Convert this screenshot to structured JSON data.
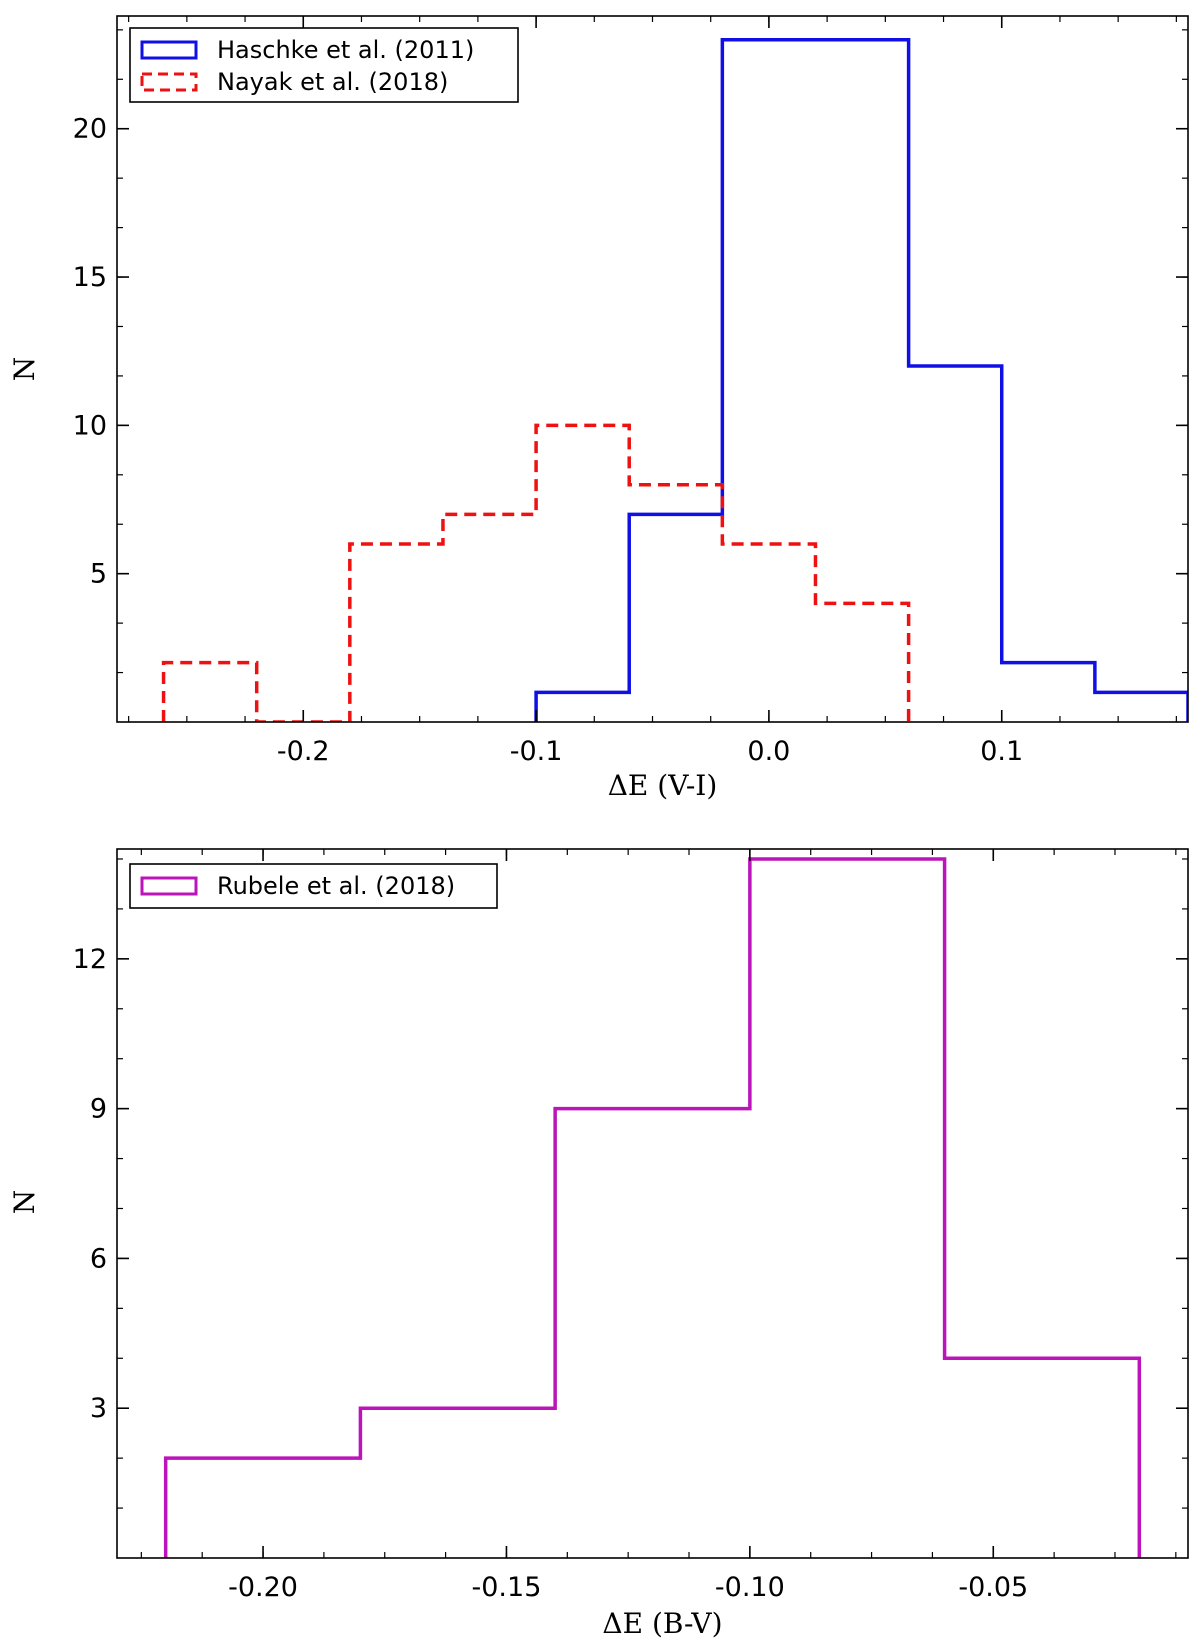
{
  "chart_data": [
    {
      "type": "histogram",
      "xlabel": "ΔE (V-I)",
      "ylabel": "N",
      "xlim": [
        -0.28,
        0.18
      ],
      "ylim": [
        0,
        23.8
      ],
      "xticks": [
        {
          "value": -0.2,
          "label": "-0.2"
        },
        {
          "value": -0.1,
          "label": "-0.1"
        },
        {
          "value": 0.0,
          "label": "0.0"
        },
        {
          "value": 0.1,
          "label": "0.1"
        }
      ],
      "yticks": [
        {
          "value": 5,
          "label": "5"
        },
        {
          "value": 10,
          "label": "10"
        },
        {
          "value": 15,
          "label": "15"
        },
        {
          "value": 20,
          "label": "20"
        }
      ],
      "legend_position": "top-left",
      "series": [
        {
          "name": "Haschke et al. (2011)",
          "color": "#1010e6",
          "style": "solid",
          "bin_edges": [
            -0.1,
            -0.06,
            -0.02,
            0.06,
            0.1,
            0.14,
            0.18
          ],
          "counts": [
            1,
            7,
            23,
            12,
            2,
            1
          ]
        },
        {
          "name": "Nayak et al. (2018)",
          "color": "#ee1111",
          "style": "dashed",
          "bin_edges": [
            -0.26,
            -0.22,
            -0.18,
            -0.14,
            -0.1,
            -0.06,
            -0.02,
            0.02,
            0.06
          ],
          "counts": [
            2,
            0,
            6,
            7,
            10,
            8,
            6,
            4
          ]
        }
      ]
    },
    {
      "type": "histogram",
      "xlabel": "ΔE (B-V)",
      "ylabel": "N",
      "xlim": [
        -0.23,
        -0.01
      ],
      "ylim": [
        0,
        14.2
      ],
      "xticks": [
        {
          "value": -0.2,
          "label": "-0.20"
        },
        {
          "value": -0.15,
          "label": "-0.15"
        },
        {
          "value": -0.1,
          "label": "-0.10"
        },
        {
          "value": -0.05,
          "label": "-0.05"
        }
      ],
      "yticks": [
        {
          "value": 3,
          "label": "3"
        },
        {
          "value": 6,
          "label": "6"
        },
        {
          "value": 9,
          "label": "9"
        },
        {
          "value": 12,
          "label": "12"
        }
      ],
      "legend_position": "top-left",
      "series": [
        {
          "name": "Rubele et al. (2018)",
          "color": "#bb14bb",
          "style": "solid",
          "bin_edges": [
            -0.22,
            -0.18,
            -0.14,
            -0.1,
            -0.06,
            -0.02
          ],
          "counts": [
            2,
            3,
            9,
            14,
            4
          ]
        }
      ]
    }
  ]
}
